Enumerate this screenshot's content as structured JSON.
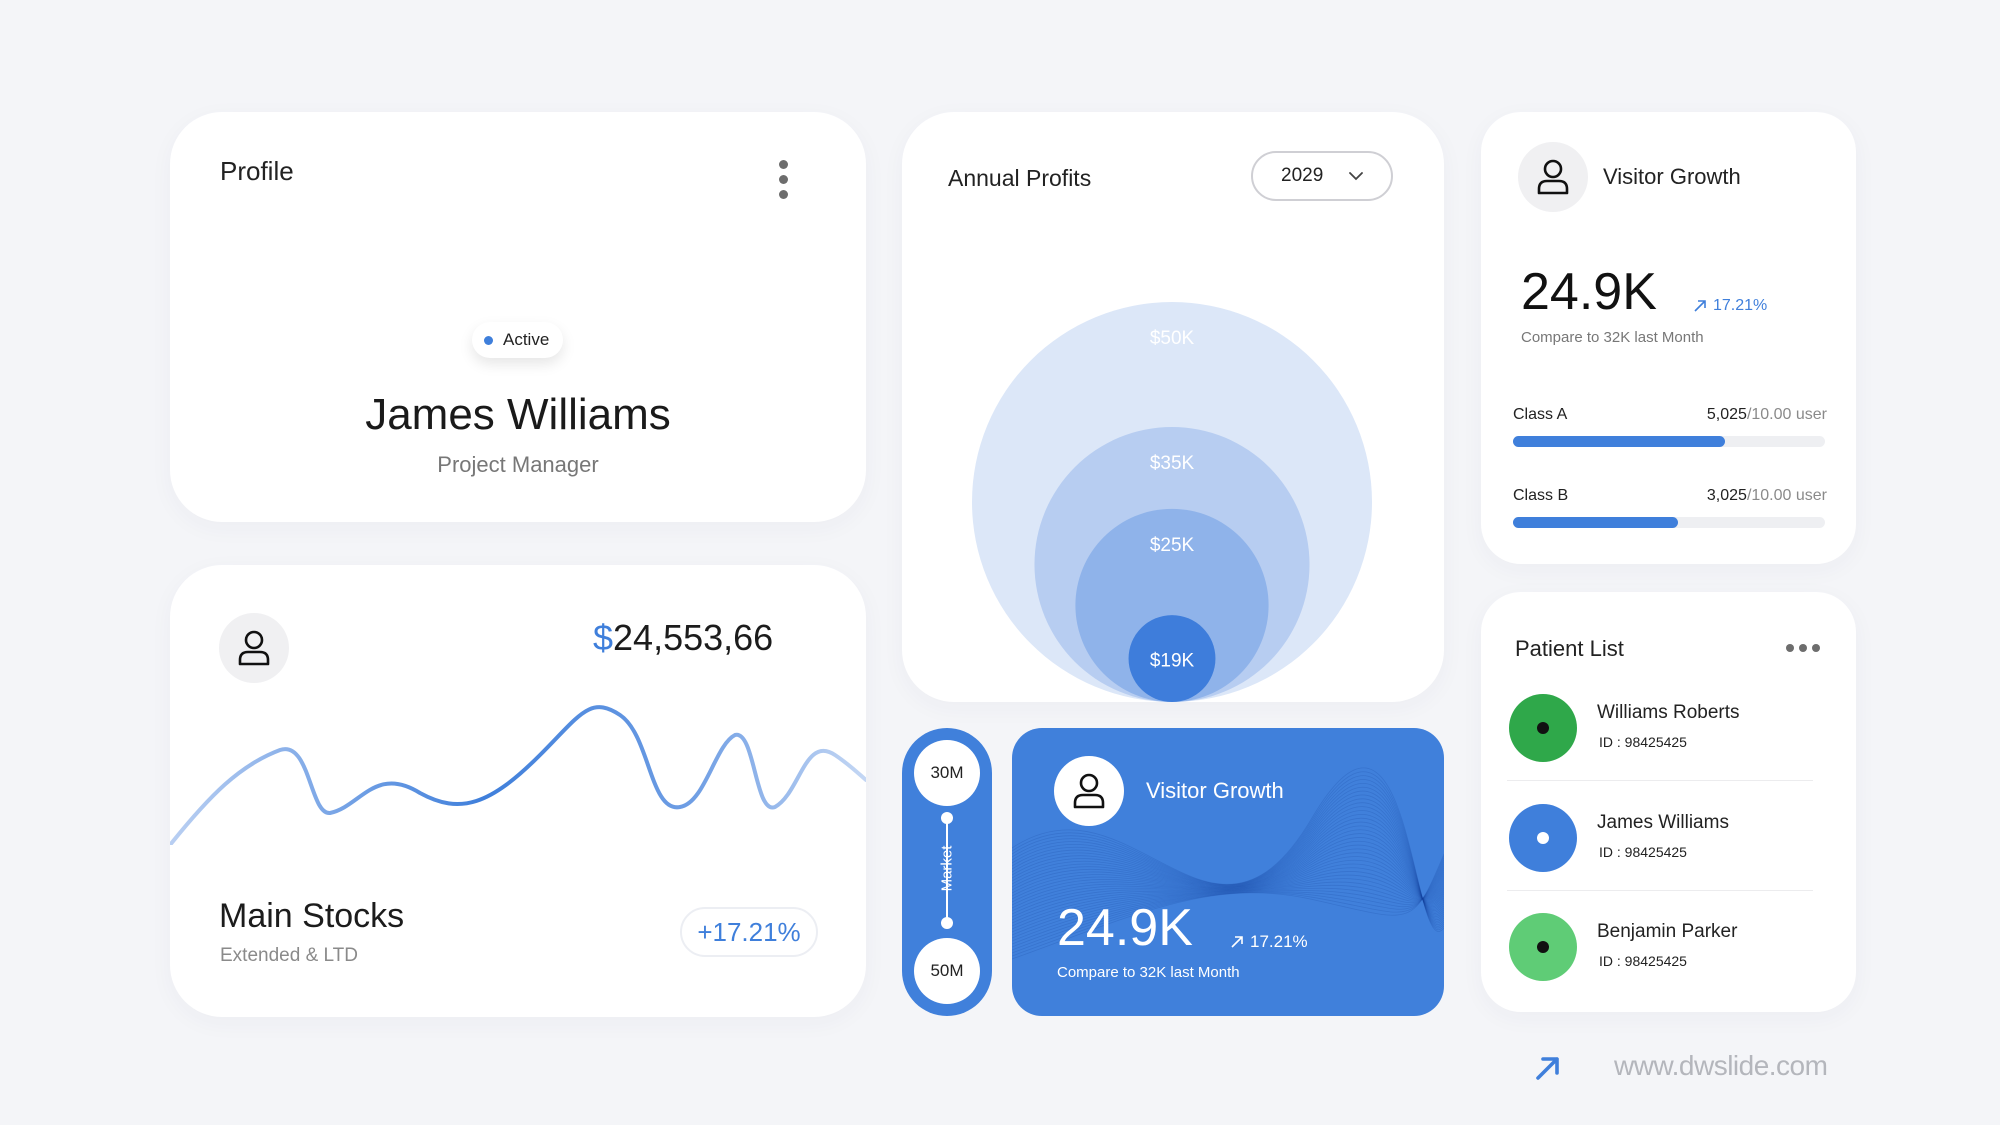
{
  "profile": {
    "title": "Profile",
    "status": "Active",
    "name": "James Williams",
    "role": "Project Manager",
    "icons": {
      "menu": "vertical-dots-icon"
    }
  },
  "stocks": {
    "currency": "$",
    "amount": "24,553,66",
    "label": "Main Stocks",
    "sub": "Extended & LTD",
    "change": "+17.21%",
    "icons": {
      "avatar": "user-icon"
    }
  },
  "annual_profits": {
    "title": "Annual Profits",
    "year": "2029",
    "icons": {
      "dropdown": "chevron-down-icon"
    }
  },
  "chart_data": {
    "type": "bubble",
    "title": "Annual Profits",
    "categories": [
      "$50K",
      "$35K",
      "$25K",
      "$19K"
    ],
    "values": [
      50,
      35,
      25,
      19
    ],
    "unit": "K",
    "colors": [
      "#dce7f8",
      "#b7cdf1",
      "#8fb3ea",
      "#3e7ddb"
    ]
  },
  "market": {
    "top": "30M",
    "bottom": "50M",
    "label": "Market"
  },
  "visitor_growth_blue": {
    "title": "Visitor Growth",
    "value": "24.9K",
    "change": "17.21%",
    "compare": "Compare to 32K last Month",
    "icons": {
      "avatar": "user-icon",
      "trend": "arrow-up-right-icon"
    }
  },
  "visitor_growth": {
    "title": "Visitor Growth",
    "value": "24.9K",
    "change": "17.21%",
    "compare": "Compare to 32K last Month",
    "classes": [
      {
        "label": "Class A",
        "value": "5,025",
        "unit": "/10.00 user",
        "fill": 0.68
      },
      {
        "label": "Class B",
        "value": "3,025",
        "unit": "/10.00 user",
        "fill": 0.53
      }
    ],
    "icons": {
      "avatar": "user-icon",
      "trend": "arrow-up-right-icon"
    }
  },
  "patients": {
    "title": "Patient List",
    "items": [
      {
        "name": "Williams Roberts",
        "id": "ID : 98425425",
        "color": "#2fa84a",
        "dot": "#111111"
      },
      {
        "name": "James Williams",
        "id": "ID : 98425425",
        "color": "#3f7fdb",
        "dot": "#ffffff"
      },
      {
        "name": "Benjamin Parker",
        "id": "ID : 98425425",
        "color": "#5fcc76",
        "dot": "#111111"
      }
    ],
    "icons": {
      "menu": "horizontal-dots-icon"
    }
  },
  "footer": {
    "url": "www.dwslide.com",
    "icons": {
      "arrow": "arrow-up-right-icon"
    },
    "accent": "#3f7fdb"
  }
}
